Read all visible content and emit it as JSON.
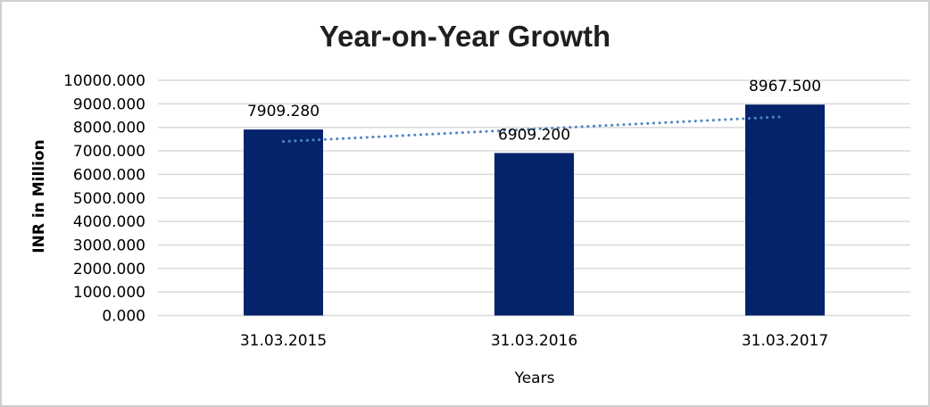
{
  "chart_data": {
    "type": "bar",
    "title": "Year-on-Year Growth",
    "xlabel": "Years",
    "ylabel": "INR in Million",
    "categories": [
      "31.03.2015",
      "31.03.2016",
      "31.03.2017"
    ],
    "values": [
      7909.28,
      6909.2,
      8967.5
    ],
    "data_labels": [
      "7909.280",
      "6909.200",
      "8967.500"
    ],
    "y_tick_labels": [
      "0.000",
      "1000.000",
      "2000.000",
      "3000.000",
      "4000.000",
      "5000.000",
      "6000.000",
      "7000.000",
      "8000.000",
      "9000.000",
      "10000.000"
    ],
    "ylim": [
      0,
      10000
    ],
    "y_tick_step": 1000,
    "grid": true,
    "legend": false,
    "bar_color": "#05236b",
    "gridline_color": "#d9d9d9",
    "title_color": "#1f1f1f",
    "frame_color": "#cfcfcf",
    "trendline": {
      "type": "linear",
      "style": "dotted",
      "color": "#4f86c6"
    }
  }
}
